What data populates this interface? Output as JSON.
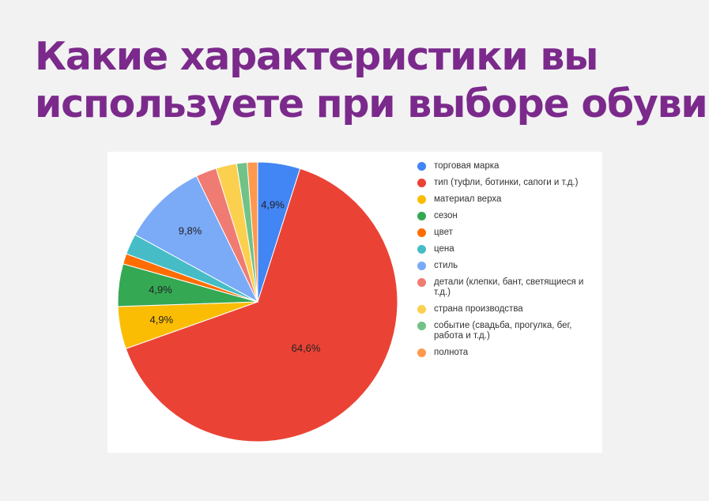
{
  "slide": {
    "title_line1": "Какие характеристики вы",
    "title_line2": "используете при выборе обуви"
  },
  "chart_data": {
    "type": "pie",
    "title": "",
    "legend_position": "right",
    "start": "top, clockwise",
    "slices": [
      {
        "label": "торговая марка",
        "value": 4.9,
        "color": "#4285f4",
        "data_label": "4,9%"
      },
      {
        "label": "тип (туфли, ботинки, сапоги и т.д.)",
        "value": 64.6,
        "color": "#ea4335",
        "data_label": "64,6%"
      },
      {
        "label": "материал верха",
        "value": 4.9,
        "color": "#fbbc04",
        "data_label": "4,9%"
      },
      {
        "label": "сезон",
        "value": 4.9,
        "color": "#34a853",
        "data_label": "4,9%"
      },
      {
        "label": "цвет",
        "value": 1.2,
        "color": "#ff6d01",
        "data_label": ""
      },
      {
        "label": "цена",
        "value": 2.4,
        "color": "#46bdc6",
        "data_label": ""
      },
      {
        "label": "стиль",
        "value": 9.8,
        "color": "#7baaf7",
        "data_label": "9,8%"
      },
      {
        "label": "детали (клепки, бант, светящиеся и т.д.)",
        "value": 2.4,
        "color": "#f07b72",
        "data_label": ""
      },
      {
        "label": "страна производства",
        "value": 2.4,
        "color": "#fcd04f",
        "data_label": ""
      },
      {
        "label": "событие (свадьба, прогулка, бег, работа и т.д.)",
        "value": 1.2,
        "color": "#71c287",
        "data_label": ""
      },
      {
        "label": "полнота",
        "value": 1.2,
        "color": "#ff994d",
        "data_label": ""
      }
    ]
  }
}
